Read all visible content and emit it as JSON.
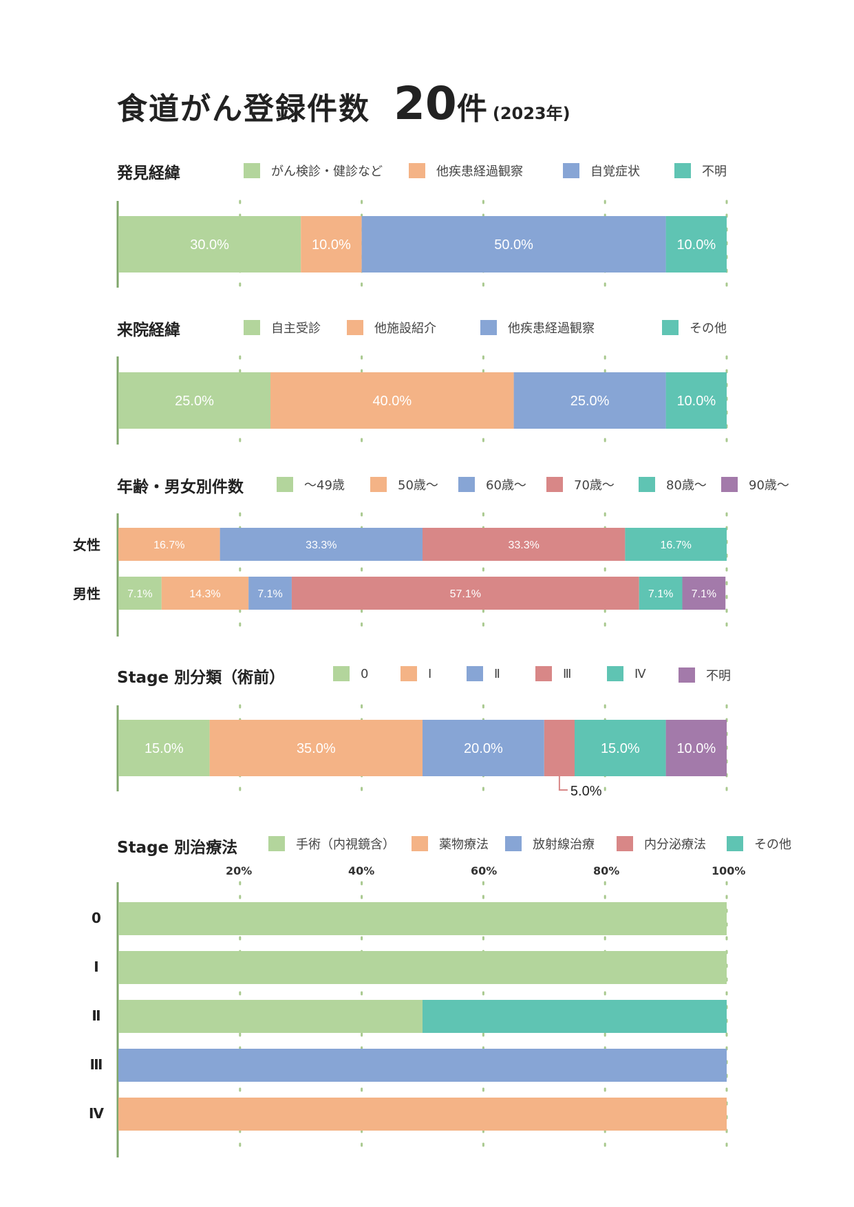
{
  "header": {
    "title": "食道がん登録件数",
    "count": "20",
    "count_unit": "件",
    "year": "(2023年)"
  },
  "colors": {
    "green": "#b3d59c",
    "orange": "#f4b386",
    "blue": "#87a5d5",
    "red": "#d88787",
    "teal": "#5fc4b3",
    "purple": "#a37aaa",
    "axis": "#7fa66a",
    "grid": "#a9c98f"
  },
  "sections": {
    "discovery": {
      "label": "発見経緯",
      "legend": [
        "がん検診・健診など",
        "他疾患経過観察",
        "自覚症状",
        "不明"
      ]
    },
    "visit": {
      "label": "来院経緯",
      "legend": [
        "自主受診",
        "他施設紹介",
        "他疾患経過観察",
        "その他"
      ]
    },
    "age": {
      "label": "年齢・男女別件数",
      "legend": [
        "〜49歳",
        "50歳〜",
        "60歳〜",
        "70歳〜",
        "80歳〜",
        "90歳〜"
      ],
      "rows": [
        "女性",
        "男性"
      ]
    },
    "stage": {
      "label": "Stage 別分類（術前）",
      "legend": [
        "0",
        "Ⅰ",
        "Ⅱ",
        "Ⅲ",
        "Ⅳ",
        "不明"
      ],
      "callout": "5.0%"
    },
    "treatment": {
      "label": "Stage 別治療法",
      "legend": [
        "手術（内視鏡含）",
        "薬物療法",
        "放射線治療",
        "内分泌療法",
        "その他"
      ],
      "axis_ticks": [
        "20%",
        "40%",
        "60%",
        "80%",
        "100%"
      ],
      "rows": [
        "0",
        "Ⅰ",
        "Ⅱ",
        "Ⅲ",
        "Ⅳ"
      ]
    }
  },
  "chart_data": [
    {
      "type": "bar",
      "orientation": "horizontal-stacked-100",
      "title": "発見経緯",
      "series": [
        {
          "name": "がん検診・健診など",
          "values": [
            30.0
          ],
          "color": "#b3d59c"
        },
        {
          "name": "他疾患経過観察",
          "values": [
            10.0
          ],
          "color": "#f4b386"
        },
        {
          "name": "自覚症状",
          "values": [
            50.0
          ],
          "color": "#87a5d5"
        },
        {
          "name": "不明",
          "values": [
            10.0
          ],
          "color": "#5fc4b3"
        }
      ]
    },
    {
      "type": "bar",
      "orientation": "horizontal-stacked-100",
      "title": "来院経緯",
      "series": [
        {
          "name": "自主受診",
          "values": [
            25.0
          ],
          "color": "#b3d59c"
        },
        {
          "name": "他施設紹介",
          "values": [
            40.0
          ],
          "color": "#f4b386"
        },
        {
          "name": "他疾患経過観察",
          "values": [
            25.0
          ],
          "color": "#87a5d5"
        },
        {
          "name": "その他",
          "values": [
            10.0
          ],
          "color": "#5fc4b3"
        }
      ]
    },
    {
      "type": "bar",
      "orientation": "horizontal-stacked-100",
      "title": "年齢・男女別件数",
      "categories": [
        "女性",
        "男性"
      ],
      "series": [
        {
          "name": "〜49歳",
          "values": [
            0,
            7.1
          ],
          "color": "#b3d59c"
        },
        {
          "name": "50歳〜",
          "values": [
            16.7,
            14.3
          ],
          "color": "#f4b386"
        },
        {
          "name": "60歳〜",
          "values": [
            33.3,
            7.1
          ],
          "color": "#87a5d5"
        },
        {
          "name": "70歳〜",
          "values": [
            33.3,
            57.1
          ],
          "color": "#d88787"
        },
        {
          "name": "80歳〜",
          "values": [
            16.7,
            7.1
          ],
          "color": "#5fc4b3"
        },
        {
          "name": "90歳〜",
          "values": [
            0,
            7.1
          ],
          "color": "#a37aaa"
        }
      ]
    },
    {
      "type": "bar",
      "orientation": "horizontal-stacked-100",
      "title": "Stage 別分類（術前）",
      "series": [
        {
          "name": "0",
          "values": [
            15.0
          ],
          "color": "#b3d59c"
        },
        {
          "name": "Ⅰ",
          "values": [
            35.0
          ],
          "color": "#f4b386"
        },
        {
          "name": "Ⅱ",
          "values": [
            20.0
          ],
          "color": "#87a5d5"
        },
        {
          "name": "Ⅲ",
          "values": [
            5.0
          ],
          "color": "#d88787"
        },
        {
          "name": "Ⅳ",
          "values": [
            15.0
          ],
          "color": "#5fc4b3"
        },
        {
          "name": "不明",
          "values": [
            10.0
          ],
          "color": "#a37aaa"
        }
      ]
    },
    {
      "type": "bar",
      "orientation": "horizontal-stacked-100",
      "title": "Stage 別治療法",
      "categories": [
        "0",
        "Ⅰ",
        "Ⅱ",
        "Ⅲ",
        "Ⅳ"
      ],
      "xlim": [
        0,
        100
      ],
      "series": [
        {
          "name": "手術（内視鏡含）",
          "values": [
            100,
            100,
            50,
            0,
            0
          ],
          "color": "#b3d59c"
        },
        {
          "name": "薬物療法",
          "values": [
            0,
            0,
            0,
            0,
            100
          ],
          "color": "#f4b386"
        },
        {
          "name": "放射線治療",
          "values": [
            0,
            0,
            0,
            100,
            0
          ],
          "color": "#87a5d5"
        },
        {
          "name": "内分泌療法",
          "values": [
            0,
            0,
            0,
            0,
            0
          ],
          "color": "#d88787"
        },
        {
          "name": "その他",
          "values": [
            0,
            0,
            50,
            0,
            0
          ],
          "color": "#5fc4b3"
        }
      ]
    }
  ]
}
